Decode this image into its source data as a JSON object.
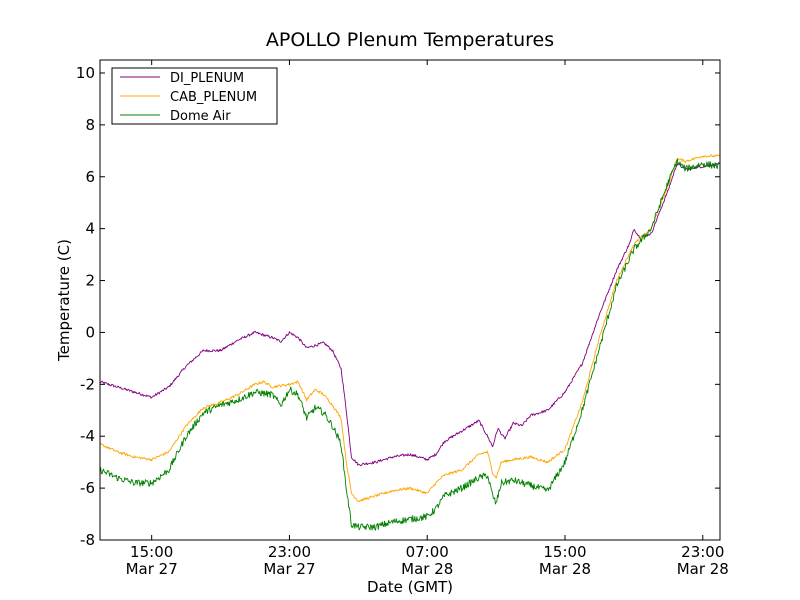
{
  "chart_data": {
    "type": "line",
    "title": "APOLLO Plenum Temperatures",
    "xlabel": "Date (GMT)",
    "ylabel": "Temperature (C)",
    "xlim_hours": [
      0,
      36
    ],
    "ylim": [
      -8,
      10.5
    ],
    "yticks": [
      -8,
      -6,
      -4,
      -2,
      0,
      2,
      4,
      6,
      8,
      10
    ],
    "xticks": [
      {
        "hour": 3,
        "time": "15:00",
        "date": "Mar 27"
      },
      {
        "hour": 11,
        "time": "23:00",
        "date": "Mar 27"
      },
      {
        "hour": 19,
        "time": "07:00",
        "date": "Mar 28"
      },
      {
        "hour": 27,
        "time": "15:00",
        "date": "Mar 28"
      },
      {
        "hour": 35,
        "time": "23:00",
        "date": "Mar 28"
      }
    ],
    "legend_position": "top-left",
    "series": [
      {
        "name": "DI_PLENUM",
        "color": "#800080",
        "noise": 0.05,
        "points": [
          [
            0,
            -1.9
          ],
          [
            1,
            -2.1
          ],
          [
            2,
            -2.3
          ],
          [
            3,
            -2.5
          ],
          [
            4,
            -2.1
          ],
          [
            5,
            -1.3
          ],
          [
            6,
            -0.7
          ],
          [
            7,
            -0.7
          ],
          [
            8,
            -0.3
          ],
          [
            9,
            0.0
          ],
          [
            10,
            -0.2
          ],
          [
            10.5,
            -0.35
          ],
          [
            11,
            0.0
          ],
          [
            11.5,
            -0.2
          ],
          [
            12,
            -0.6
          ],
          [
            12.5,
            -0.5
          ],
          [
            13,
            -0.4
          ],
          [
            13.5,
            -0.7
          ],
          [
            14,
            -1.4
          ],
          [
            14.3,
            -3.0
          ],
          [
            14.6,
            -4.8
          ],
          [
            15,
            -5.1
          ],
          [
            16,
            -5.0
          ],
          [
            17,
            -4.8
          ],
          [
            18,
            -4.7
          ],
          [
            19,
            -4.9
          ],
          [
            19.5,
            -4.7
          ],
          [
            20,
            -4.2
          ],
          [
            21,
            -3.8
          ],
          [
            22,
            -3.4
          ],
          [
            22.5,
            -4.0
          ],
          [
            22.8,
            -4.4
          ],
          [
            23.1,
            -3.7
          ],
          [
            23.5,
            -4.1
          ],
          [
            24,
            -3.5
          ],
          [
            24.5,
            -3.6
          ],
          [
            25,
            -3.2
          ],
          [
            26,
            -3.0
          ],
          [
            27,
            -2.3
          ],
          [
            28,
            -1.2
          ],
          [
            29,
            0.7
          ],
          [
            30,
            2.4
          ],
          [
            30.8,
            3.5
          ],
          [
            31,
            4.0
          ],
          [
            31.3,
            3.7
          ],
          [
            32,
            3.8
          ],
          [
            33,
            5.5
          ],
          [
            33.5,
            6.5
          ],
          [
            34,
            6.3
          ],
          [
            35,
            6.4
          ],
          [
            36,
            6.5
          ]
        ]
      },
      {
        "name": "CAB_PLENUM",
        "color": "#FFA500",
        "noise": 0.05,
        "points": [
          [
            0,
            -4.3
          ],
          [
            1,
            -4.6
          ],
          [
            2,
            -4.8
          ],
          [
            3,
            -4.9
          ],
          [
            4,
            -4.6
          ],
          [
            5,
            -3.6
          ],
          [
            6,
            -2.9
          ],
          [
            7,
            -2.7
          ],
          [
            8,
            -2.4
          ],
          [
            9,
            -2.0
          ],
          [
            9.5,
            -1.9
          ],
          [
            10,
            -2.1
          ],
          [
            11,
            -2.0
          ],
          [
            11.5,
            -1.9
          ],
          [
            12,
            -2.6
          ],
          [
            12.5,
            -2.2
          ],
          [
            13,
            -2.4
          ],
          [
            13.5,
            -2.8
          ],
          [
            14,
            -3.3
          ],
          [
            14.3,
            -5.0
          ],
          [
            14.6,
            -6.2
          ],
          [
            15,
            -6.5
          ],
          [
            16,
            -6.3
          ],
          [
            17,
            -6.1
          ],
          [
            18,
            -6.0
          ],
          [
            19,
            -6.2
          ],
          [
            19.5,
            -5.8
          ],
          [
            20,
            -5.5
          ],
          [
            21,
            -5.3
          ],
          [
            22,
            -4.7
          ],
          [
            22.5,
            -4.6
          ],
          [
            22.8,
            -5.4
          ],
          [
            23,
            -5.6
          ],
          [
            23.3,
            -5.0
          ],
          [
            24,
            -4.9
          ],
          [
            25,
            -4.8
          ],
          [
            26,
            -5.0
          ],
          [
            27,
            -4.5
          ],
          [
            28,
            -2.7
          ],
          [
            29,
            -0.2
          ],
          [
            30,
            2.0
          ],
          [
            31,
            3.4
          ],
          [
            32,
            4.0
          ],
          [
            33,
            5.7
          ],
          [
            33.5,
            6.7
          ],
          [
            34,
            6.6
          ],
          [
            35,
            6.8
          ],
          [
            36,
            6.8
          ]
        ]
      },
      {
        "name": "Dome Air",
        "color": "#008000",
        "noise": 0.13,
        "points": [
          [
            0,
            -5.3
          ],
          [
            1,
            -5.6
          ],
          [
            2,
            -5.8
          ],
          [
            3,
            -5.8
          ],
          [
            4,
            -5.3
          ],
          [
            5,
            -4.0
          ],
          [
            6,
            -3.1
          ],
          [
            7,
            -2.8
          ],
          [
            8,
            -2.6
          ],
          [
            9,
            -2.3
          ],
          [
            10,
            -2.4
          ],
          [
            10.5,
            -2.8
          ],
          [
            11,
            -2.2
          ],
          [
            11.5,
            -2.4
          ],
          [
            12,
            -3.3
          ],
          [
            12.5,
            -2.9
          ],
          [
            13,
            -3.1
          ],
          [
            13.5,
            -3.6
          ],
          [
            14,
            -4.3
          ],
          [
            14.3,
            -6.0
          ],
          [
            14.6,
            -7.4
          ],
          [
            15,
            -7.5
          ],
          [
            16,
            -7.5
          ],
          [
            17,
            -7.3
          ],
          [
            18,
            -7.2
          ],
          [
            19,
            -7.1
          ],
          [
            19.5,
            -6.8
          ],
          [
            20,
            -6.3
          ],
          [
            21,
            -6.0
          ],
          [
            22,
            -5.6
          ],
          [
            22.5,
            -5.5
          ],
          [
            22.8,
            -6.3
          ],
          [
            23,
            -6.6
          ],
          [
            23.3,
            -5.8
          ],
          [
            24,
            -5.7
          ],
          [
            25,
            -5.9
          ],
          [
            26,
            -6.1
          ],
          [
            27,
            -5.0
          ],
          [
            28,
            -3.0
          ],
          [
            29,
            -0.6
          ],
          [
            30,
            1.8
          ],
          [
            31,
            3.2
          ],
          [
            32,
            4.0
          ],
          [
            33,
            5.8
          ],
          [
            33.5,
            6.6
          ],
          [
            34,
            6.3
          ],
          [
            35,
            6.5
          ],
          [
            36,
            6.4
          ]
        ]
      }
    ]
  }
}
